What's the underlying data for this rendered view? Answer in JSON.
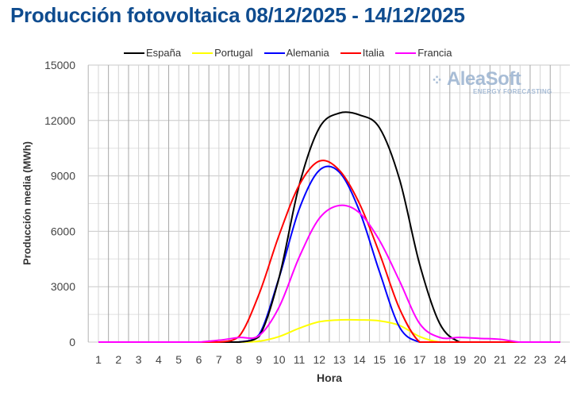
{
  "title": "Producción fotovoltaica 08/12/2025 - 14/12/2025",
  "watermark": {
    "brand": "AleaSoft",
    "tagline": "ENERGY FORECASTING"
  },
  "chart_data": {
    "type": "line",
    "title": "Producción fotovoltaica 08/12/2025 - 14/12/2025",
    "xlabel": "Hora",
    "ylabel": "Producción media (MWh)",
    "ylim": [
      0,
      15000
    ],
    "yticks": [
      0,
      3000,
      6000,
      9000,
      12000,
      15000
    ],
    "grid": true,
    "legend_position": "top",
    "x": [
      1,
      2,
      3,
      4,
      5,
      6,
      7,
      8,
      9,
      10,
      11,
      12,
      13,
      14,
      15,
      16,
      17,
      18,
      19,
      20,
      21,
      22,
      23,
      24
    ],
    "series": [
      {
        "name": "España",
        "color": "#000000",
        "values": [
          0,
          0,
          0,
          0,
          0,
          0,
          0,
          0,
          300,
          3500,
          8500,
          11600,
          12400,
          12300,
          11600,
          8800,
          4200,
          1000,
          0,
          0,
          0,
          0,
          0,
          0
        ]
      },
      {
        "name": "Portugal",
        "color": "#ffff00",
        "values": [
          0,
          0,
          0,
          0,
          0,
          0,
          0,
          0,
          50,
          300,
          750,
          1100,
          1200,
          1200,
          1150,
          900,
          300,
          0,
          0,
          0,
          0,
          0,
          0,
          0
        ]
      },
      {
        "name": "Alemania",
        "color": "#0000ff",
        "values": [
          0,
          0,
          0,
          0,
          0,
          0,
          0,
          0,
          400,
          3500,
          7200,
          9300,
          9200,
          7100,
          3800,
          800,
          0,
          0,
          0,
          0,
          0,
          0,
          0,
          0
        ]
      },
      {
        "name": "Italia",
        "color": "#ff0000",
        "values": [
          0,
          0,
          0,
          0,
          0,
          0,
          0,
          300,
          2600,
          5800,
          8500,
          9800,
          9300,
          7500,
          4800,
          1800,
          0,
          0,
          0,
          0,
          0,
          0,
          0,
          0
        ]
      },
      {
        "name": "Francia",
        "color": "#ff00ff",
        "values": [
          0,
          0,
          0,
          0,
          0,
          0,
          100,
          250,
          350,
          1900,
          4600,
          6700,
          7400,
          7000,
          5500,
          3300,
          1000,
          250,
          250,
          200,
          150,
          0,
          0,
          0
        ]
      }
    ]
  }
}
